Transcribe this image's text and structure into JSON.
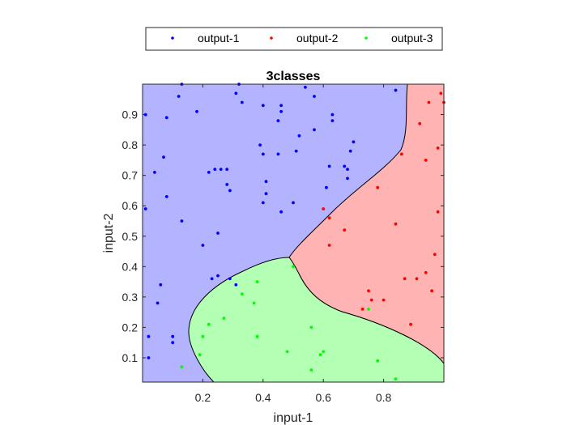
{
  "chart_data": {
    "type": "scatter",
    "title": "3classes",
    "xlabel": "input-1",
    "ylabel": "input-2",
    "xlim": [
      0,
      1
    ],
    "ylim": [
      0.02,
      1
    ],
    "xticks": [
      0.2,
      0.4,
      0.6,
      0.8
    ],
    "yticks": [
      0.1,
      0.2,
      0.3,
      0.4,
      0.5,
      0.6,
      0.7,
      0.8,
      0.9
    ],
    "grid": false,
    "legend_position": "top-center",
    "regions": [
      {
        "name": "output-1",
        "color": "#b3b3ff"
      },
      {
        "name": "output-2",
        "color": "#ffb3b3"
      },
      {
        "name": "output-3",
        "color": "#b3ffb3"
      }
    ],
    "series": [
      {
        "name": "output-1",
        "color": "#0000ff",
        "points": [
          [
            0.01,
            0.9
          ],
          [
            0.13,
            1.0
          ],
          [
            0.12,
            0.96
          ],
          [
            0.08,
            0.89
          ],
          [
            0.18,
            0.91
          ],
          [
            0.32,
            1.0
          ],
          [
            0.31,
            0.97
          ],
          [
            0.33,
            0.94
          ],
          [
            0.4,
            0.93
          ],
          [
            0.46,
            0.93
          ],
          [
            0.46,
            0.91
          ],
          [
            0.45,
            0.88
          ],
          [
            0.54,
            0.99
          ],
          [
            0.57,
            0.96
          ],
          [
            0.63,
            0.9
          ],
          [
            0.63,
            0.88
          ],
          [
            0.57,
            0.85
          ],
          [
            0.52,
            0.83
          ],
          [
            0.7,
            0.81
          ],
          [
            0.69,
            0.78
          ],
          [
            0.39,
            0.8
          ],
          [
            0.4,
            0.77
          ],
          [
            0.45,
            0.77
          ],
          [
            0.51,
            0.78
          ],
          [
            0.04,
            0.71
          ],
          [
            0.07,
            0.76
          ],
          [
            0.24,
            0.72
          ],
          [
            0.22,
            0.71
          ],
          [
            0.26,
            0.72
          ],
          [
            0.28,
            0.72
          ],
          [
            0.62,
            0.73
          ],
          [
            0.67,
            0.73
          ],
          [
            0.68,
            0.72
          ],
          [
            0.28,
            0.67
          ],
          [
            0.29,
            0.65
          ],
          [
            0.41,
            0.68
          ],
          [
            0.41,
            0.64
          ],
          [
            0.61,
            0.66
          ],
          [
            0.68,
            0.69
          ],
          [
            0.08,
            0.63
          ],
          [
            0.01,
            0.59
          ],
          [
            0.4,
            0.61
          ],
          [
            0.46,
            0.58
          ],
          [
            0.5,
            0.61
          ],
          [
            0.13,
            0.55
          ],
          [
            0.25,
            0.51
          ],
          [
            0.2,
            0.47
          ],
          [
            0.23,
            0.36
          ],
          [
            0.25,
            0.37
          ],
          [
            0.29,
            0.36
          ],
          [
            0.31,
            0.34
          ],
          [
            0.06,
            0.34
          ],
          [
            0.05,
            0.28
          ],
          [
            0.02,
            0.17
          ],
          [
            0.1,
            0.17
          ],
          [
            0.1,
            0.15
          ],
          [
            0.02,
            0.1
          ],
          [
            0.84,
            0.98
          ]
        ]
      },
      {
        "name": "output-2",
        "color": "#ff0000",
        "points": [
          [
            0.95,
            0.94
          ],
          [
            0.99,
            0.97
          ],
          [
            1.0,
            0.94
          ],
          [
            0.92,
            0.87
          ],
          [
            0.86,
            0.77
          ],
          [
            0.94,
            0.75
          ],
          [
            0.98,
            0.79
          ],
          [
            0.6,
            0.59
          ],
          [
            0.62,
            0.56
          ],
          [
            0.67,
            0.52
          ],
          [
            0.62,
            0.47
          ],
          [
            0.78,
            0.66
          ],
          [
            0.84,
            0.54
          ],
          [
            0.98,
            0.58
          ],
          [
            0.97,
            0.44
          ],
          [
            0.94,
            0.38
          ],
          [
            0.87,
            0.36
          ],
          [
            0.91,
            0.36
          ],
          [
            0.96,
            0.32
          ],
          [
            0.75,
            0.32
          ],
          [
            0.76,
            0.29
          ],
          [
            0.8,
            0.29
          ],
          [
            0.73,
            0.26
          ],
          [
            0.89,
            0.21
          ]
        ]
      },
      {
        "name": "output-3",
        "color": "#00ff00",
        "points": [
          [
            0.38,
            0.35
          ],
          [
            0.33,
            0.31
          ],
          [
            0.37,
            0.28
          ],
          [
            0.27,
            0.23
          ],
          [
            0.22,
            0.21
          ],
          [
            0.2,
            0.17
          ],
          [
            0.38,
            0.17
          ],
          [
            0.56,
            0.2
          ],
          [
            0.5,
            0.4
          ],
          [
            0.48,
            0.12
          ],
          [
            0.6,
            0.12
          ],
          [
            0.59,
            0.11
          ],
          [
            0.19,
            0.11
          ],
          [
            0.13,
            0.07
          ],
          [
            0.56,
            0.06
          ],
          [
            0.78,
            0.09
          ],
          [
            0.84,
            0.03
          ],
          [
            0.75,
            0.26
          ]
        ]
      }
    ]
  }
}
